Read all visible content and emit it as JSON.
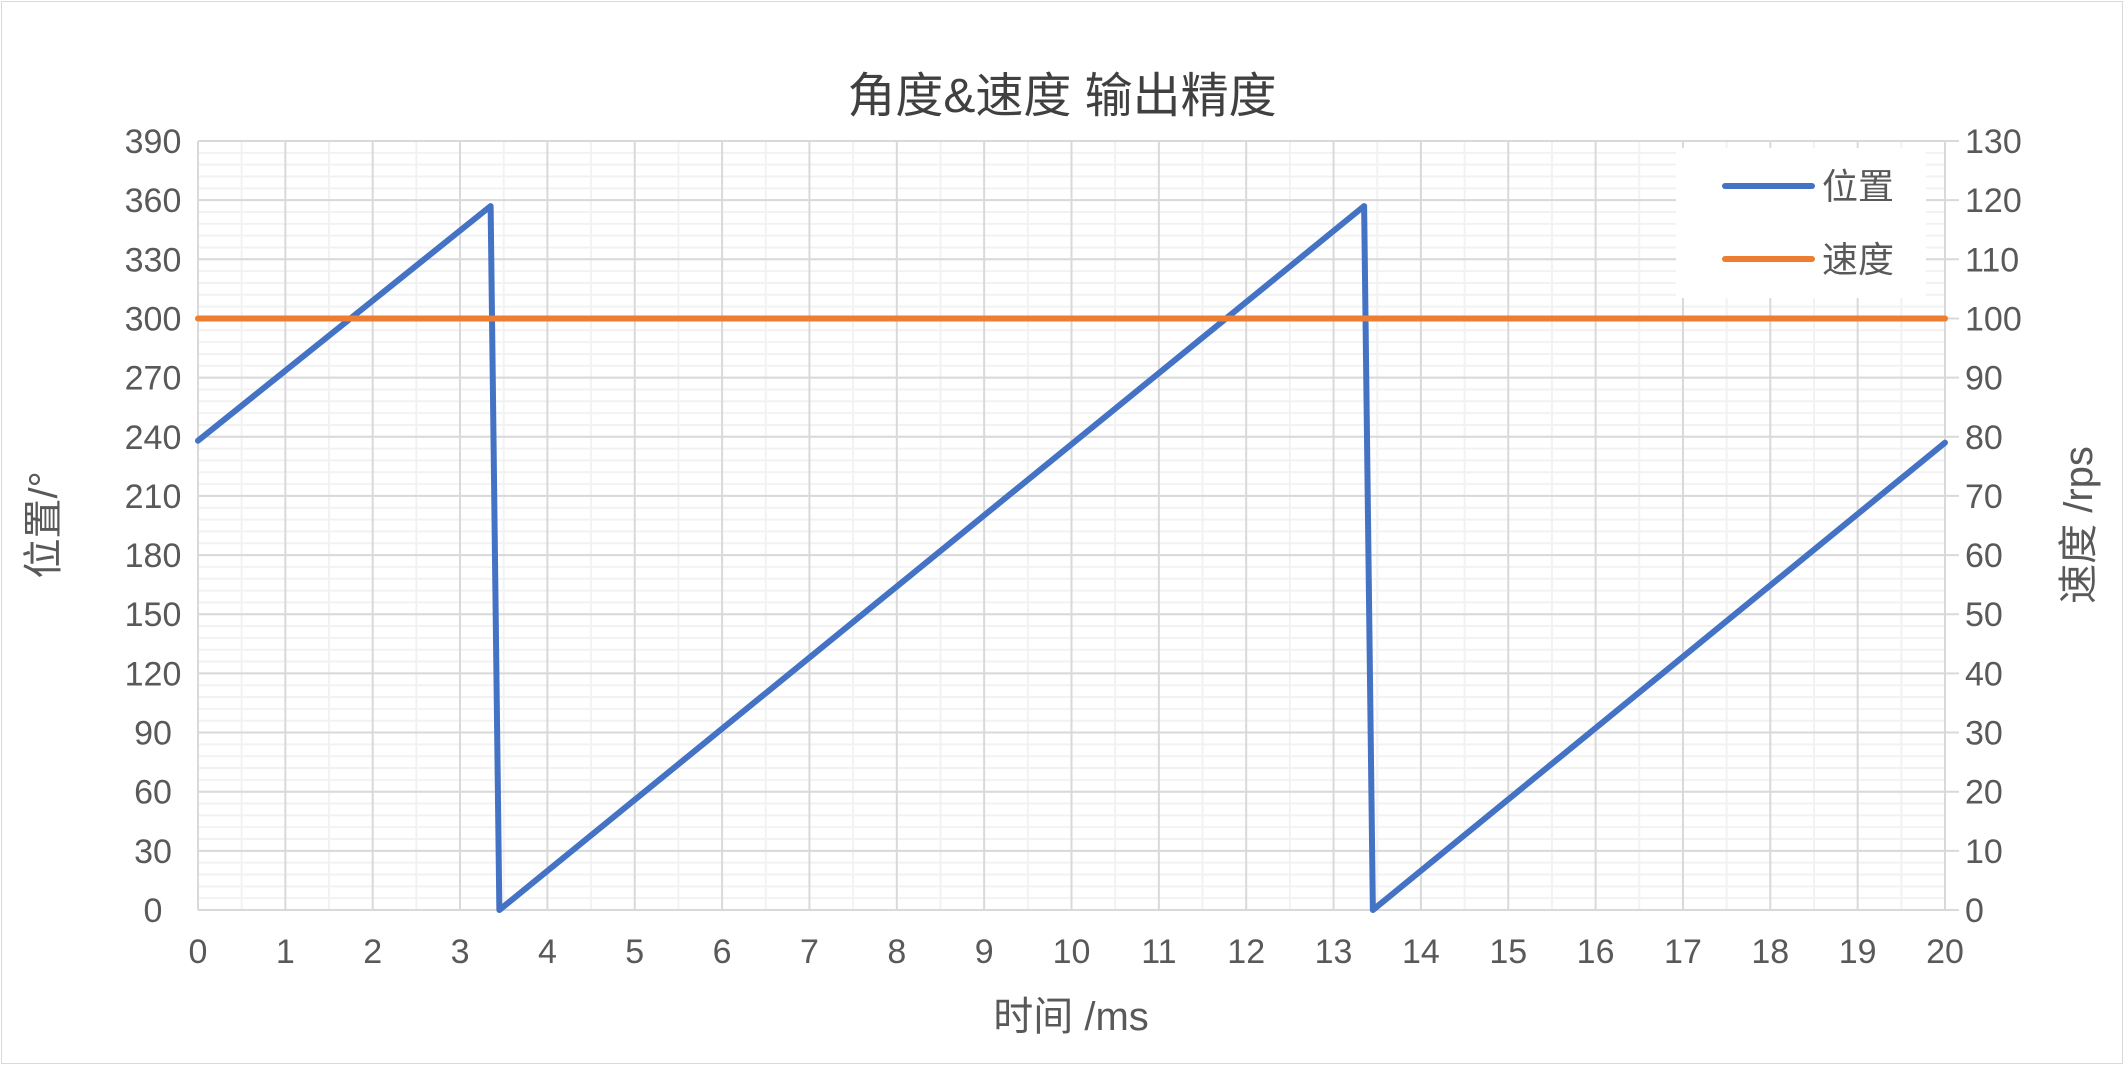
{
  "chart_data": {
    "type": "line",
    "title": "角度&速度 输出精度",
    "xlabel": "时间 /ms",
    "ylabel": "位置/°",
    "y2label": "速度 /rps",
    "xlim": [
      0,
      20
    ],
    "ylim": [
      0,
      390
    ],
    "y2lim": [
      0,
      130
    ],
    "xticks": [
      0,
      1,
      2,
      3,
      4,
      5,
      6,
      7,
      8,
      9,
      10,
      11,
      12,
      13,
      14,
      15,
      16,
      17,
      18,
      19,
      20
    ],
    "yticks": [
      0,
      30,
      60,
      90,
      120,
      150,
      180,
      210,
      240,
      270,
      300,
      330,
      360,
      390
    ],
    "y2ticks": [
      0,
      10,
      20,
      30,
      40,
      50,
      60,
      70,
      80,
      90,
      100,
      110,
      120,
      130
    ],
    "grid": true,
    "legend_position": "top-right",
    "series": [
      {
        "name": "位置",
        "axis": "left",
        "color": "#4472C4",
        "x": [
          0,
          3.35,
          3.45,
          13.35,
          13.45,
          20
        ],
        "y": [
          238,
          357,
          0,
          357,
          0,
          237
        ]
      },
      {
        "name": "速度",
        "axis": "right",
        "color": "#ED7D31",
        "x": [
          0,
          20
        ],
        "y": [
          100,
          100
        ]
      }
    ]
  }
}
